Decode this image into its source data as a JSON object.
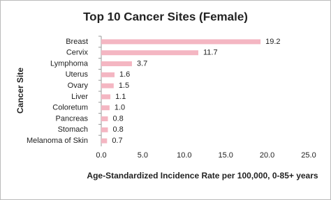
{
  "chart_data": {
    "type": "hbar",
    "title": "Top 10 Cancer Sites (Female)",
    "x_label": "Age-Standardized Incidence Rate per 100,000, 0-85+ years",
    "y_label": "Cancer Site",
    "categories": [
      "Breast",
      "Cervix",
      "Lymphoma",
      "Uterus",
      "Ovary",
      "Liver",
      "Coloretum",
      "Pancreas",
      "Stomach",
      "Melanoma of Skin"
    ],
    "values": [
      19.2,
      11.7,
      3.7,
      1.6,
      1.5,
      1.1,
      1.0,
      0.8,
      0.8,
      0.7
    ],
    "value_labels": [
      "19.2",
      "11.7",
      "3.7",
      "1.6",
      "1.5",
      "1.1",
      "1.0",
      "0.8",
      "0.8",
      "0.7"
    ],
    "color": "#f4b6c2",
    "xlim": [
      0,
      25
    ],
    "xticks": [
      {
        "value": 0,
        "label": "0.0"
      },
      {
        "value": 5,
        "label": "5.0"
      },
      {
        "value": 10,
        "label": "10.0"
      },
      {
        "value": 15,
        "label": "15.0"
      },
      {
        "value": 20,
        "label": "20.0"
      },
      {
        "value": 25,
        "label": "25.0"
      }
    ],
    "grid": false
  }
}
